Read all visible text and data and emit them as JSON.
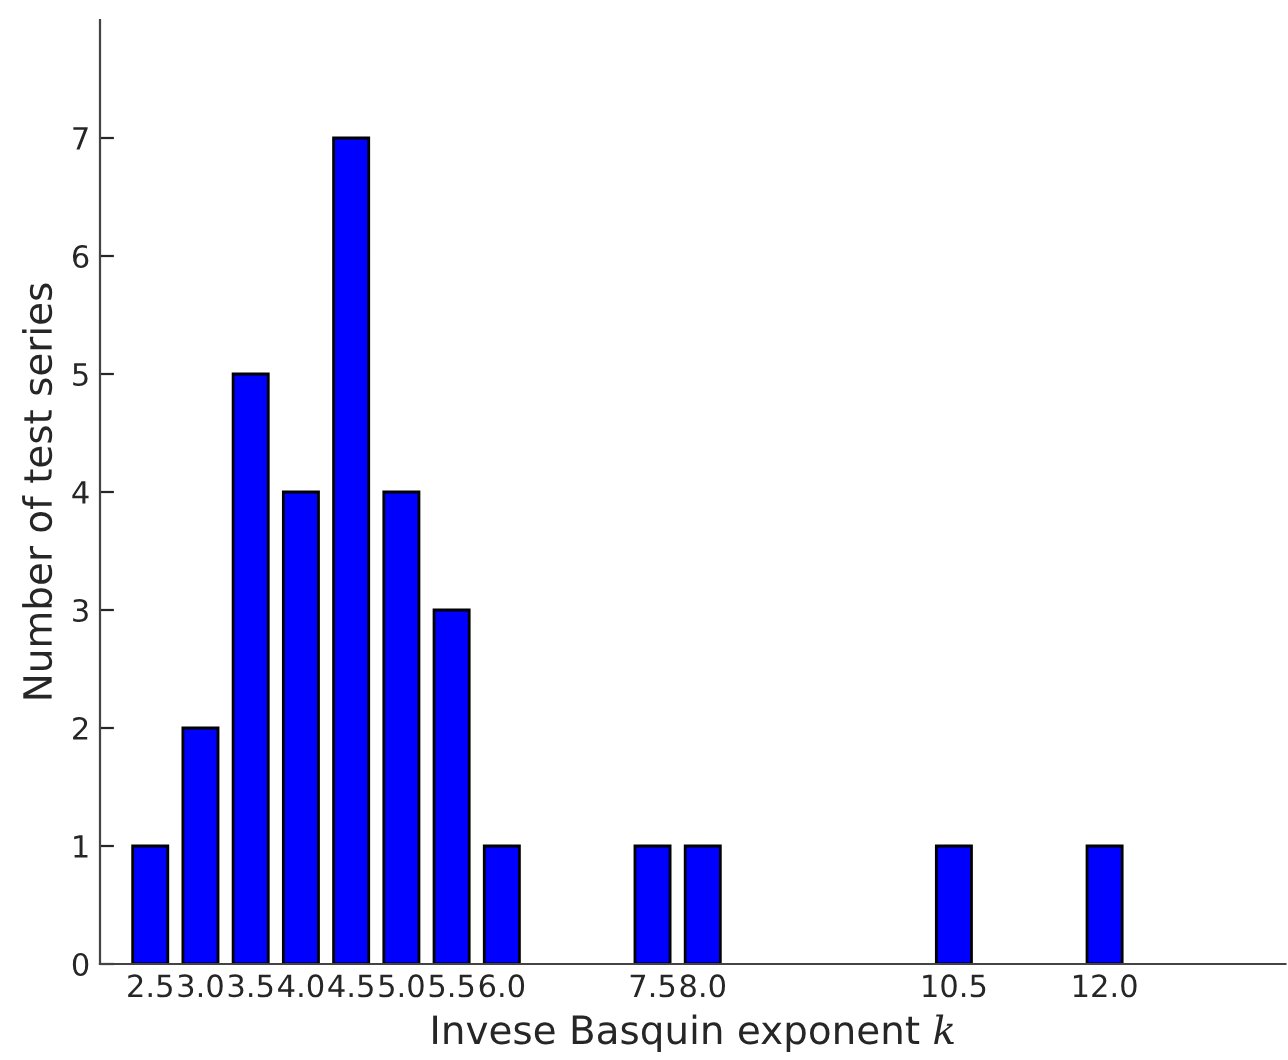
{
  "chart_data": {
    "type": "bar",
    "xlabel": "Invese Basquin exponent 𝑘",
    "ylabel": "Number of test series",
    "x": [
      2.5,
      3.0,
      3.5,
      4.0,
      4.5,
      5.0,
      5.5,
      6.0,
      7.5,
      8.0,
      10.5,
      12.0
    ],
    "series": [
      {
        "color": "#0000ff",
        "values": [
          1,
          2,
          5,
          4,
          7,
          4,
          3,
          1,
          1,
          1,
          1,
          1
        ]
      }
    ],
    "xlim": [
      2.0,
      13.8
    ],
    "xticks": [
      2.5,
      {
        "value": 3,
        "label": "3.0"
      },
      3.5,
      {
        "value": 4,
        "label": "4.0"
      },
      4.5,
      {
        "value": 5,
        "label": "5.0"
      },
      5.5,
      {
        "value": 6,
        "label": "6.0"
      },
      7.5,
      {
        "value": 8,
        "label": "8.0"
      },
      10.5,
      {
        "value": 12,
        "label": "12.0"
      }
    ],
    "ylim": [
      0,
      8
    ],
    "yticks": [
      0,
      1,
      2,
      3,
      4,
      5,
      6,
      7
    ],
    "grid": false,
    "legend": false
  }
}
